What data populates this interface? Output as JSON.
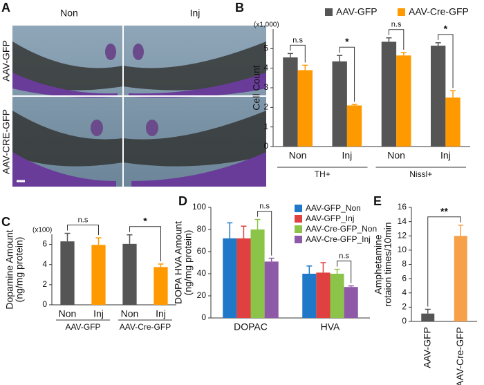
{
  "panel_a": {
    "label": "A",
    "columns": [
      "Non",
      "Inj"
    ],
    "rows": [
      "AAV-GFP",
      "AAV-CRE-GFP"
    ]
  },
  "chart_data": [
    {
      "type": "bar",
      "label": "B",
      "y_label": [
        "Cell Count"
      ],
      "y_unit": "(x1,000)",
      "categories": [
        "Non",
        "Inj",
        "Non",
        "Inj"
      ],
      "group_labels": [
        "TH+",
        "Nissl+"
      ],
      "series": [
        {
          "name": "AAV-GFP",
          "color": "#555555",
          "values": [
            4.55,
            4.35,
            5.35,
            5.15
          ],
          "errors": [
            0.2,
            0.3,
            0.2,
            0.15
          ]
        },
        {
          "name": "AAV-Cre-GFP",
          "color": "#ff9900",
          "values": [
            3.9,
            2.1,
            4.65,
            2.5
          ],
          "errors": [
            0.25,
            0.05,
            0.15,
            0.35
          ]
        }
      ],
      "ylim": [
        0,
        6
      ],
      "yticks": [
        0,
        1,
        2,
        3,
        4,
        5
      ],
      "legend": "top",
      "annotations": [
        "n.s",
        "*",
        "n.s",
        "*"
      ]
    },
    {
      "type": "bar",
      "label": "C",
      "y_label": [
        "Dopamine Amount",
        "(ng/mg protein)"
      ],
      "y_unit": "(x100)",
      "categories": [
        "Non",
        "Inj",
        "Non",
        "Inj"
      ],
      "group_labels": [
        "AAV-GFP",
        "AAV-Cre-GFP"
      ],
      "values": [
        6.3,
        5.95,
        6.05,
        3.75
      ],
      "errors": [
        0.8,
        0.7,
        0.9,
        0.3
      ],
      "colors": [
        "#555555",
        "#ff9900",
        "#555555",
        "#ff9900"
      ],
      "ylim": [
        0,
        7
      ],
      "yticks": [
        0,
        2,
        4,
        6
      ],
      "annotations": [
        "n.s",
        "*"
      ]
    },
    {
      "type": "bar",
      "label": "D",
      "y_label": [
        "DOPA HVA Amount",
        "(ng/mg protein)"
      ],
      "categories": [
        "DOPAC",
        "HVA"
      ],
      "series": [
        {
          "name": "AAV-GFP_Non",
          "color": "#1f78c8",
          "values": [
            72,
            40
          ],
          "errors": [
            14,
            7
          ]
        },
        {
          "name": "AAV-GFP_Inj",
          "color": "#e04040",
          "values": [
            72,
            41
          ],
          "errors": [
            11,
            9
          ]
        },
        {
          "name": "AAV-Cre-GFP_Non",
          "color": "#8cc44a",
          "values": [
            80,
            40
          ],
          "errors": [
            9,
            4
          ]
        },
        {
          "name": "AAV-Cre-GFP_Inj",
          "color": "#8e5aa8",
          "values": [
            51,
            28
          ],
          "errors": [
            3,
            1
          ]
        }
      ],
      "ylim": [
        0,
        100
      ],
      "yticks": [
        0,
        20,
        40,
        60,
        80,
        100
      ],
      "legend": "upper right",
      "annotations": [
        "n.s",
        "n.s"
      ]
    },
    {
      "type": "bar",
      "label": "E",
      "y_label": [
        "Amphetamine",
        "rotaion times/10min"
      ],
      "categories": [
        "AAV-GFP",
        "AAV-Cre-GFP"
      ],
      "values": [
        1.1,
        12
      ],
      "errors": [
        0.6,
        1.5
      ],
      "colors": [
        "#555555",
        "#f7a04a"
      ],
      "ylim": [
        0,
        16
      ],
      "yticks": [
        0,
        2,
        4,
        6,
        8,
        10,
        12,
        14,
        16
      ],
      "annotations": [
        "**"
      ]
    }
  ]
}
